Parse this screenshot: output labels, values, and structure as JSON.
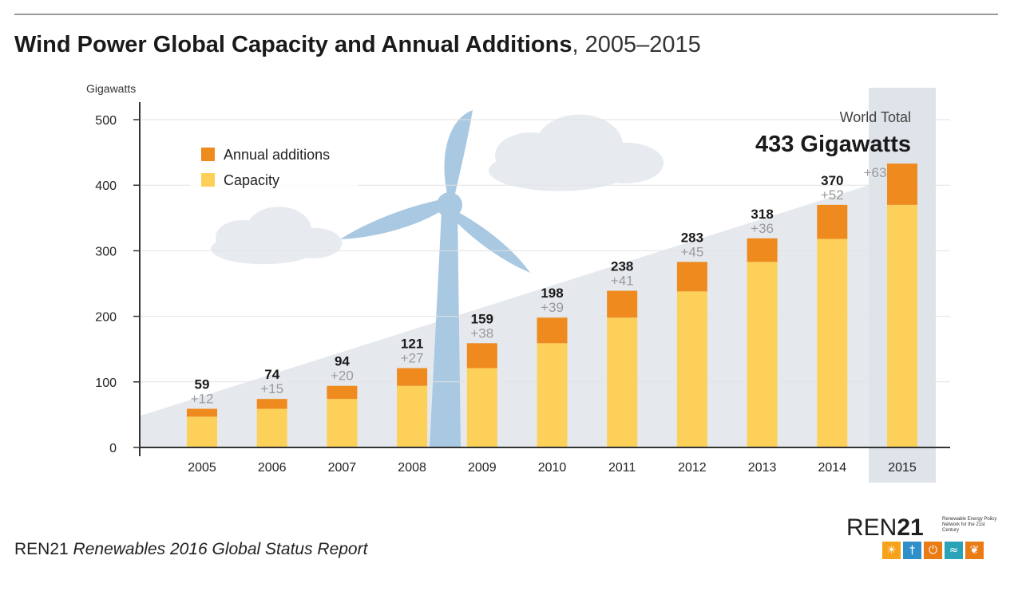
{
  "title_bold": "Wind Power Global Capacity and Annual Additions",
  "title_rest": ", 2005–2015",
  "source_org": "REN21",
  "source_report": "Renewables 2016 Global Status Report",
  "logo": {
    "word_a": "REN",
    "word_b": "21",
    "tagline": "Renewable Energy Policy Network for the 21st Century",
    "icons": [
      {
        "name": "sun-icon",
        "glyph": "☀",
        "color": "#f6a21a"
      },
      {
        "name": "wind-turbine-icon",
        "glyph": "†",
        "color": "#2f8fc9"
      },
      {
        "name": "power-icon",
        "glyph": "⏻",
        "color": "#ea7c16"
      },
      {
        "name": "water-icon",
        "glyph": "≈",
        "color": "#2aa3b8"
      },
      {
        "name": "leaf-icon",
        "glyph": "❦",
        "color": "#ea7c16"
      }
    ]
  },
  "colors": {
    "capacity": "#fdd05a",
    "additions": "#ee8a1e",
    "trend_area": "#e5e9ee",
    "turbine": "#a9c8e2",
    "cloud": "#e7ebf0",
    "highlight_col": "#dfe4ea"
  },
  "chart_data": {
    "type": "bar",
    "stacked": true,
    "ylabel": "Gigawatts",
    "ylim": [
      0,
      500
    ],
    "yticks": [
      0,
      100,
      200,
      300,
      400,
      500
    ],
    "grid": true,
    "legend_position": "top-left",
    "categories": [
      "2005",
      "2006",
      "2007",
      "2008",
      "2009",
      "2010",
      "2011",
      "2012",
      "2013",
      "2014",
      "2015"
    ],
    "series": [
      {
        "name": "Capacity",
        "values": [
          47,
          59,
          74,
          94,
          121,
          159,
          198,
          238,
          283,
          318,
          370
        ]
      },
      {
        "name": "Annual additions",
        "values": [
          12,
          15,
          20,
          27,
          38,
          39,
          41,
          45,
          36,
          52,
          63
        ]
      }
    ],
    "totals": [
      "59",
      "74",
      "94",
      "121",
      "159",
      "198",
      "238",
      "283",
      "318",
      "370",
      ""
    ],
    "addition_labels": [
      "+12",
      "+15",
      "+20",
      "+27",
      "+38",
      "+39",
      "+41",
      "+45",
      "+36",
      "+52",
      "+63"
    ],
    "highlight": {
      "category": "2015",
      "label_small": "World Total",
      "label_big": "433 Gigawatts"
    }
  }
}
